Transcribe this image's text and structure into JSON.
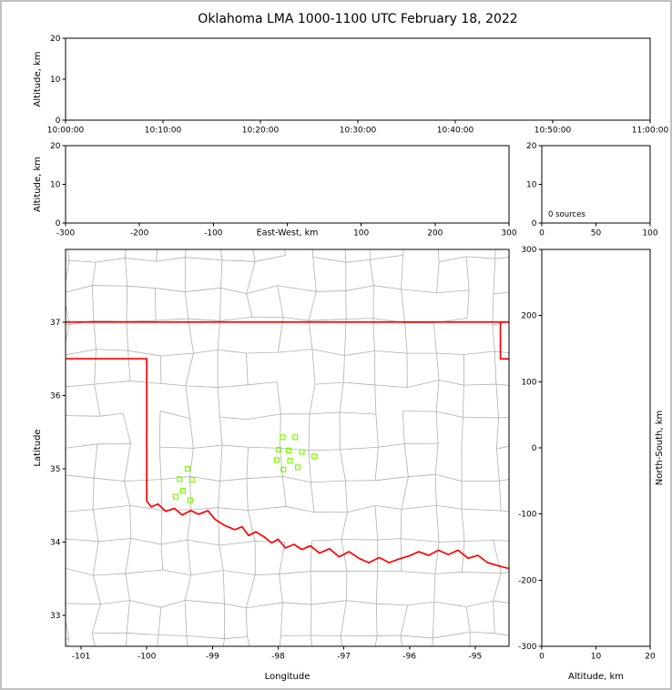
{
  "title": "Oklahoma LMA 1000-1100 UTC February 18, 2022",
  "colors": {
    "state_border": "#ff0000",
    "county_lines": "#b0b0b0",
    "stations": "#7CFC00",
    "axes": "#000000",
    "figure_frame": "#c0c0c0"
  },
  "chart_data": [
    {
      "id": "time_height_panel",
      "type": "scatter",
      "xlabel": "",
      "ylabel": "Altitude, km",
      "xlim": [
        0,
        6
      ],
      "xticks": [
        0,
        1,
        2,
        3,
        4,
        5,
        6
      ],
      "x_tick_labels": [
        "10:00:00",
        "10:10:00",
        "10:20:00",
        "10:30:00",
        "10:40:00",
        "10:50:00",
        "11:00:00"
      ],
      "ylim": [
        0,
        20
      ],
      "yticks": [
        0,
        10,
        20
      ],
      "y_tick_labels": [
        "0",
        "10",
        "20"
      ],
      "points": []
    },
    {
      "id": "east_west_panel",
      "type": "scatter",
      "xlabel": "East-West, km",
      "xlabel_inline": true,
      "ylabel": "Altitude, km",
      "xlim": [
        -300,
        300
      ],
      "xticks": [
        -300,
        -200,
        -100,
        0,
        100,
        200,
        300
      ],
      "x_tick_labels": [
        "-300",
        "-200",
        "-100",
        "",
        "100",
        "200",
        "300"
      ],
      "ylim": [
        0,
        20
      ],
      "yticks": [
        0,
        10,
        20
      ],
      "y_tick_labels": [
        "0",
        "10",
        "20"
      ],
      "points": []
    },
    {
      "id": "altitude_histogram_panel",
      "type": "histogram",
      "annotation": "0 sources",
      "xlim": [
        0,
        100
      ],
      "xticks": [
        0,
        50,
        100
      ],
      "x_tick_labels": [
        "0",
        "50",
        "100"
      ],
      "ylim": [
        0,
        20
      ],
      "yticks": [
        0,
        10,
        20
      ],
      "y_tick_labels": [
        "0",
        "10",
        "20"
      ],
      "values": []
    },
    {
      "id": "plan_view_panel",
      "type": "scatter",
      "xlabel": "Longitude",
      "ylabel": "Latitude",
      "xlim": [
        -101.236,
        -94.486
      ],
      "xticks": [
        -101,
        -100,
        -99,
        -98,
        -97,
        -96,
        -95
      ],
      "x_tick_labels": [
        "-101",
        "-100",
        "-99",
        "-98",
        "-97",
        "-96",
        "-95"
      ],
      "ylim": [
        32.58,
        37.99
      ],
      "yticks": [
        33,
        34,
        35,
        36,
        37
      ],
      "y_tick_labels": [
        "33",
        "34",
        "35",
        "36",
        "37"
      ],
      "stations": [
        [
          -97.93,
          35.43
        ],
        [
          -97.74,
          35.43
        ],
        [
          -97.99,
          35.26
        ],
        [
          -97.84,
          35.25
        ],
        [
          -97.64,
          35.23
        ],
        [
          -98.02,
          35.12
        ],
        [
          -97.82,
          35.11
        ],
        [
          -97.92,
          34.99
        ],
        [
          -97.7,
          35.02
        ],
        [
          -97.45,
          35.17
        ],
        [
          -99.38,
          35.0
        ],
        [
          -99.5,
          34.86
        ],
        [
          -99.31,
          34.85
        ],
        [
          -99.45,
          34.7
        ],
        [
          -99.34,
          34.57
        ],
        [
          -99.56,
          34.62
        ]
      ],
      "state_border": [
        [
          [
            -101.236,
            37.0
          ],
          [
            -94.486,
            37.0
          ]
        ],
        [
          [
            -94.617,
            37.0
          ],
          [
            -94.617,
            36.498
          ],
          [
            -94.486,
            36.498
          ]
        ],
        [
          [
            -101.236,
            36.5
          ],
          [
            -100.0,
            36.5
          ],
          [
            -100.0,
            34.56
          ],
          [
            -99.93,
            34.48
          ],
          [
            -99.83,
            34.52
          ],
          [
            -99.71,
            34.42
          ],
          [
            -99.58,
            34.46
          ],
          [
            -99.46,
            34.37
          ],
          [
            -99.33,
            34.43
          ],
          [
            -99.21,
            34.38
          ],
          [
            -99.07,
            34.43
          ],
          [
            -98.96,
            34.31
          ],
          [
            -98.82,
            34.23
          ],
          [
            -98.66,
            34.17
          ],
          [
            -98.55,
            34.21
          ],
          [
            -98.45,
            34.09
          ],
          [
            -98.34,
            34.14
          ],
          [
            -98.21,
            34.07
          ],
          [
            -98.1,
            33.99
          ],
          [
            -98.0,
            34.04
          ],
          [
            -97.89,
            33.92
          ],
          [
            -97.76,
            33.97
          ],
          [
            -97.64,
            33.9
          ],
          [
            -97.51,
            33.95
          ],
          [
            -97.37,
            33.85
          ],
          [
            -97.22,
            33.91
          ],
          [
            -97.07,
            33.8
          ],
          [
            -96.92,
            33.87
          ],
          [
            -96.77,
            33.78
          ],
          [
            -96.62,
            33.72
          ],
          [
            -96.46,
            33.79
          ],
          [
            -96.31,
            33.72
          ],
          [
            -96.16,
            33.77
          ],
          [
            -96.01,
            33.81
          ],
          [
            -95.86,
            33.87
          ],
          [
            -95.71,
            33.82
          ],
          [
            -95.56,
            33.89
          ],
          [
            -95.41,
            33.83
          ],
          [
            -95.26,
            33.89
          ],
          [
            -95.11,
            33.78
          ],
          [
            -94.96,
            33.82
          ],
          [
            -94.81,
            33.72
          ],
          [
            -94.66,
            33.68
          ],
          [
            -94.486,
            33.64
          ]
        ]
      ]
    },
    {
      "id": "north_south_panel",
      "type": "scatter",
      "xlabel": "Altitude, km",
      "ylabel": "North-South, km",
      "ylabel_side": "right",
      "xlim": [
        0,
        20
      ],
      "xticks": [
        0,
        10,
        20
      ],
      "x_tick_labels": [
        "0",
        "10",
        "20"
      ],
      "ylim": [
        -300,
        300
      ],
      "yticks": [
        -300,
        -200,
        -100,
        0,
        100,
        200,
        300
      ],
      "y_tick_labels": [
        "-300",
        "-200",
        "-100",
        "0",
        "100",
        "200",
        "300"
      ],
      "points": []
    }
  ]
}
